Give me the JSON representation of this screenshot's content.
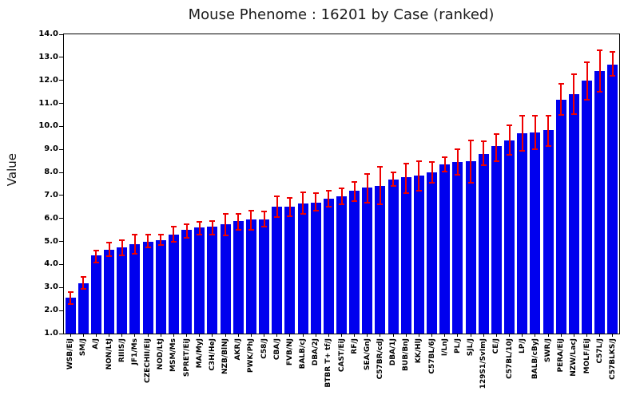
{
  "chart_data": {
    "type": "bar",
    "title": "Mouse Phenome : 16201 by Case (ranked)",
    "xlabel": "",
    "ylabel": "Value",
    "ylim": [
      1.0,
      14.0
    ],
    "ytick_step": 1.0,
    "grid": false,
    "legend": "none",
    "bar_color": "#0000EE",
    "error_bar_color": "#EE0000",
    "axis_color": "#000000",
    "background_color": "#FFFFFF",
    "categories": [
      "WSB/EiJ",
      "SM/J",
      "A/J",
      "NON/LtJ",
      "RIIIS/J",
      "JF1/Ms",
      "CZECHII/EiJ",
      "NOD/LtJ",
      "MSM/Ms",
      "SPRET/EiJ",
      "MA/MyJ",
      "C3H/HeJ",
      "NZB/BlNJ",
      "AKR/J",
      "PWK/PhJ",
      "C58/J",
      "CBA/J",
      "FVB/NJ",
      "BALB/cJ",
      "DBA/2J",
      "BTBR T+ tf/J",
      "CAST/EiJ",
      "RF/J",
      "SEA/GnJ",
      "C57BR/cdJ",
      "DBA/1J",
      "BUB/BnJ",
      "KK/HlJ",
      "C57BL/6J",
      "I/LnJ",
      "PL/J",
      "SJL/J",
      "129S1/SvImJ",
      "CE/J",
      "C57BL/10J",
      "LP/J",
      "BALB/cByJ",
      "SWR/J",
      "PERA/EiJ",
      "NZW/LacJ",
      "MOLF/EiJ",
      "C57L/J",
      "C57BLKS/J"
    ],
    "values": [
      2.55,
      3.2,
      4.4,
      4.65,
      4.75,
      4.9,
      5.0,
      5.05,
      5.3,
      5.5,
      5.6,
      5.65,
      5.75,
      5.9,
      5.95,
      5.95,
      6.5,
      6.5,
      6.65,
      6.7,
      6.85,
      6.95,
      7.2,
      7.35,
      7.4,
      7.7,
      7.8,
      7.85,
      8.0,
      8.35,
      8.45,
      8.5,
      8.8,
      9.15,
      9.4,
      9.7,
      9.75,
      9.85,
      11.15,
      11.4,
      12.0,
      12.4,
      12.7
    ],
    "error_low": [
      2.3,
      2.95,
      4.1,
      4.35,
      4.4,
      4.45,
      4.75,
      4.85,
      5.0,
      5.15,
      5.3,
      5.3,
      5.25,
      5.5,
      5.5,
      5.65,
      6.05,
      6.1,
      6.2,
      6.35,
      6.5,
      6.6,
      6.75,
      6.7,
      6.6,
      7.4,
      7.1,
      7.2,
      7.55,
      8.05,
      7.9,
      7.55,
      8.3,
      8.5,
      8.75,
      8.95,
      9.0,
      9.15,
      10.5,
      10.55,
      11.15,
      11.5,
      12.2
    ],
    "error_high": [
      2.8,
      3.45,
      4.6,
      4.95,
      5.05,
      5.3,
      5.3,
      5.3,
      5.65,
      5.75,
      5.85,
      5.9,
      6.2,
      6.2,
      6.35,
      6.3,
      6.95,
      6.9,
      7.15,
      7.1,
      7.2,
      7.3,
      7.6,
      7.95,
      8.25,
      8.0,
      8.4,
      8.5,
      8.45,
      8.65,
      9.0,
      9.4,
      9.35,
      9.65,
      10.05,
      10.45,
      10.45,
      10.45,
      11.85,
      12.25,
      12.8,
      13.3,
      13.25
    ]
  }
}
